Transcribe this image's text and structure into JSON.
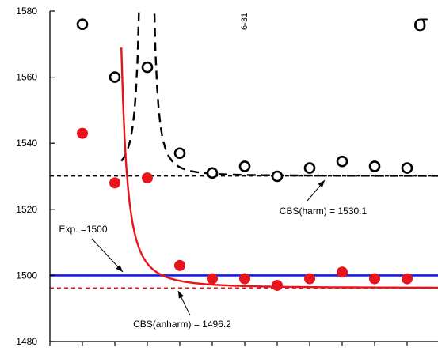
{
  "chart_data": {
    "type": "scatter",
    "title": "",
    "xlabel": "",
    "ylabel": "",
    "ylim": [
      1480,
      1580
    ],
    "y_ticks": [
      1480,
      1500,
      1520,
      1540,
      1560,
      1580
    ],
    "x_tick_count": 13,
    "corner_label": "σ",
    "top_label": "6-31",
    "series": [
      {
        "marker": "open-circle",
        "color": "#000000",
        "x": [
          1,
          2,
          3,
          4,
          5,
          6,
          7,
          8,
          9,
          10,
          11
        ],
        "values": [
          1576,
          1560,
          1563,
          1537,
          1531,
          1533,
          1530,
          1532.5,
          1534.5,
          1533,
          1532.5
        ]
      },
      {
        "marker": "filled-circle",
        "color": "#e8141c",
        "x": [
          1,
          2,
          3,
          4,
          5,
          6,
          7,
          8,
          9,
          10,
          11
        ],
        "values": [
          1543,
          1528,
          1529.5,
          1503,
          1499,
          1499,
          1497,
          1499,
          1501,
          1499,
          1499
        ]
      }
    ],
    "fit_curves": [
      {
        "color": "#000000",
        "style": "dashed",
        "asymptote": 1530.1
      },
      {
        "color": "#e8141c",
        "style": "solid",
        "asymptote": 1496.2
      }
    ],
    "reference_lines": [
      {
        "value": 1530.1,
        "color": "#000000",
        "style": "dashed"
      },
      {
        "value": 1496.2,
        "color": "#e8141c",
        "style": "dashed"
      },
      {
        "value": 1500,
        "color": "#1a1aee",
        "style": "solid"
      }
    ],
    "annotations": [
      {
        "text": "CBS(harm) = 1530.1",
        "points_to": 1530.1
      },
      {
        "text": "Exp. =1500",
        "points_to": 1500
      },
      {
        "text": "CBS(anharm) = 1496.2",
        "points_to": 1496.2
      }
    ]
  }
}
